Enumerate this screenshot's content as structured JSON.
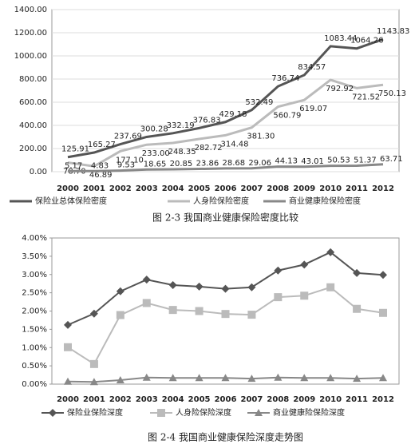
{
  "chart_data": [
    {
      "type": "line",
      "caption": "图 2-3  我国商业健康保险密度比较",
      "categories": [
        "2000",
        "2001",
        "2002",
        "2003",
        "2004",
        "2005",
        "2006",
        "2007",
        "2008",
        "2009",
        "2010",
        "2011",
        "2012"
      ],
      "ylim": [
        0,
        1400
      ],
      "yticks": [
        {
          "value": 0,
          "label": "0.00"
        },
        {
          "value": 200,
          "label": "200.00"
        },
        {
          "value": 400,
          "label": "400.00"
        },
        {
          "value": 600,
          "label": "600.00"
        },
        {
          "value": 800,
          "label": "800.00"
        },
        {
          "value": 1000,
          "label": "1000.00"
        },
        {
          "value": 1200,
          "label": "1200.00"
        },
        {
          "value": 1400,
          "label": "1400.00"
        }
      ],
      "grid": true,
      "series": [
        {
          "name": "保险业总体保险密度",
          "color": "#555555",
          "values": [
            125.91,
            165.27,
            237.69,
            300.28,
            332.19,
            376.83,
            429.18,
            532.49,
            736.74,
            834.57,
            1083.44,
            1064.26,
            1143.83
          ],
          "value_labels": [
            "125.91",
            "165.27",
            "237.69",
            "300.28",
            "332.19",
            "376.83",
            "429.18",
            "532.49",
            "736.74",
            "834.57",
            "1083.44",
            "1064.26",
            "1143.83"
          ]
        },
        {
          "name": "人身险保险密度",
          "color": "#bbbbbb",
          "values": [
            78.7,
            46.89,
            177.1,
            233,
            248.35,
            282.72,
            314.48,
            381.3,
            560.79,
            619.07,
            792.92,
            721.52,
            750.13
          ],
          "value_labels": [
            "78.70",
            "46.89",
            "177.10",
            "233.00",
            "248.35",
            "282.72",
            "314.48",
            "381.30",
            "560.79",
            "619.07",
            "792.92",
            "721.52",
            "750.13"
          ]
        },
        {
          "name": "商业健康险保险密度",
          "color": "#888888",
          "values": [
            5.17,
            4.83,
            9.53,
            18.65,
            20.85,
            23.86,
            28.68,
            29.06,
            44.13,
            43.01,
            50.53,
            51.37,
            63.71
          ],
          "value_labels": [
            "5.17",
            "4.83",
            "9.53",
            "18.65",
            "20.85",
            "23.86",
            "28.68",
            "29.06",
            "44.13",
            "43.01",
            "50.53",
            "51.37",
            "63.71"
          ]
        }
      ]
    },
    {
      "type": "line",
      "caption": "图 2-4  我国商业健康保险深度走势图",
      "categories": [
        "2000",
        "2001",
        "2002",
        "2003",
        "2004",
        "2005",
        "2006",
        "2007",
        "2008",
        "2009",
        "2010",
        "2011",
        "2012"
      ],
      "ylim": [
        0,
        4
      ],
      "yticks": [
        {
          "value": 0,
          "label": "0.00%"
        },
        {
          "value": 0.5,
          "label": "0.50%"
        },
        {
          "value": 1,
          "label": "1.00%"
        },
        {
          "value": 1.5,
          "label": "1.50%"
        },
        {
          "value": 2,
          "label": "2.00%"
        },
        {
          "value": 2.5,
          "label": "2.50%"
        },
        {
          "value": 3,
          "label": "3.00%"
        },
        {
          "value": 3.5,
          "label": "3.50%"
        },
        {
          "value": 4,
          "label": "4.00%"
        }
      ],
      "grid": false,
      "series": [
        {
          "name": "保险业保险深度",
          "color": "#555555",
          "marker": "diamond",
          "values": [
            1.62,
            1.93,
            2.54,
            2.86,
            2.71,
            2.67,
            2.61,
            2.65,
            3.11,
            3.27,
            3.61,
            3.04,
            2.99
          ]
        },
        {
          "name": "人身险保险深度",
          "color": "#bbbbbb",
          "marker": "square",
          "values": [
            1.01,
            0.55,
            1.89,
            2.22,
            2.03,
            2.0,
            1.92,
            1.9,
            2.38,
            2.42,
            2.65,
            2.06,
            1.95
          ]
        },
        {
          "name": "商业健康险保险深度",
          "color": "#888888",
          "marker": "triangle",
          "values": [
            0.07,
            0.06,
            0.11,
            0.18,
            0.17,
            0.17,
            0.17,
            0.15,
            0.18,
            0.17,
            0.17,
            0.15,
            0.17
          ]
        }
      ]
    }
  ]
}
